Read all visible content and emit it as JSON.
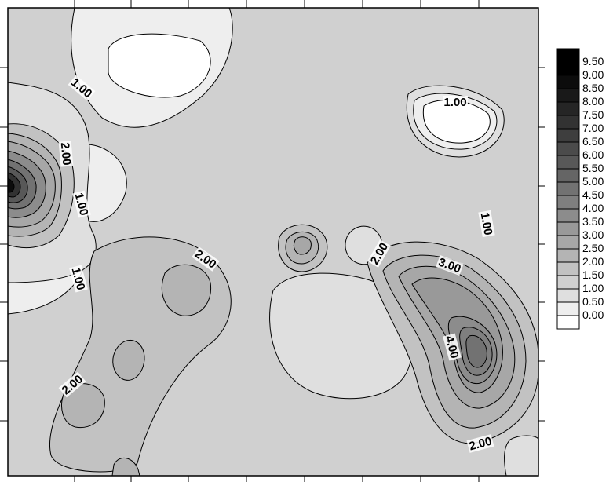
{
  "chart_data": {
    "type": "heatmap",
    "subtype": "filled-contour",
    "title": "",
    "xlabel": "",
    "ylabel": "",
    "colormap": "grayscale (white = low, black = high)",
    "levels": [
      0.0,
      0.5,
      1.0,
      1.5,
      2.0,
      2.5,
      3.0,
      3.5,
      4.0,
      4.5,
      5.0,
      5.5,
      6.0,
      6.5,
      7.0,
      7.5,
      8.0,
      8.5,
      9.0,
      9.5
    ],
    "legend_labels": [
      "9.50",
      "9.00",
      "8.50",
      "8.00",
      "7.50",
      "7.00",
      "6.50",
      "6.00",
      "5.50",
      "5.00",
      "4.50",
      "4.00",
      "3.50",
      "3.00",
      "2.50",
      "2.00",
      "1.50",
      "1.00",
      "0.50",
      "0.00"
    ],
    "legend_position": "right",
    "contour_labels": [
      {
        "text": "1.00"
      },
      {
        "text": "2.00"
      },
      {
        "text": "1.00"
      },
      {
        "text": "1.00"
      },
      {
        "text": "2.00"
      },
      {
        "text": "2.00"
      },
      {
        "text": "1.00"
      },
      {
        "text": "1.00"
      },
      {
        "text": "2.00"
      },
      {
        "text": "3.00"
      },
      {
        "text": "4.00"
      },
      {
        "text": "2.00"
      }
    ],
    "features": [
      {
        "kind": "peak",
        "value": 9.5,
        "location": "left edge, mid-upper"
      },
      {
        "kind": "peak",
        "value": 5.0,
        "location": "right side, lower"
      },
      {
        "kind": "local-max",
        "value": 3.0,
        "location": "center small island"
      }
    ],
    "grid": false
  }
}
